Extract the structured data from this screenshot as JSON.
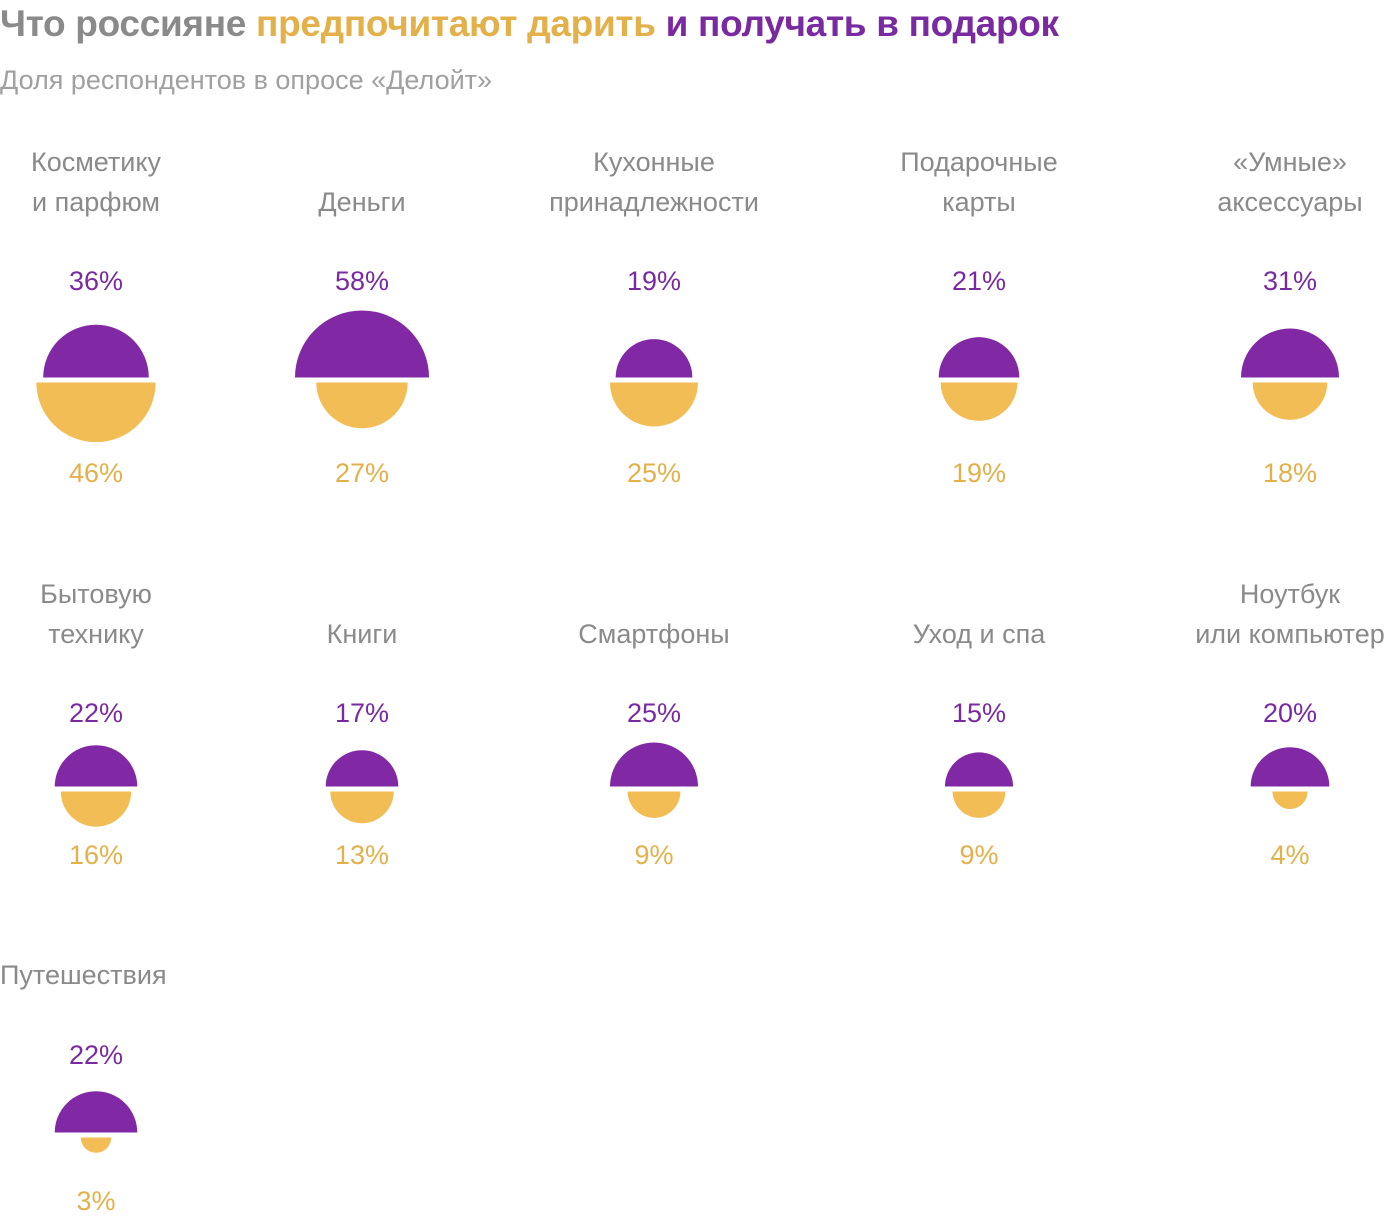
{
  "header": {
    "title_part1": "Что россияне ",
    "title_part2": "предпочитают дарить",
    "title_part3": " и получать в подарок",
    "subtitle": "Доля респондентов в опросе «Делойт»"
  },
  "colors": {
    "title_grey": "#8a8a8a",
    "give": "#e3b04a",
    "give_fill": "#f2bd55",
    "receive": "#7a2aa0",
    "receive_fill": "#8129a5",
    "category_text": "#8a8a8a"
  },
  "chart_data": {
    "type": "semicircle-pairs",
    "unit": "%",
    "series": [
      {
        "name": "получать в подарок",
        "color": "#8129a5",
        "position": "top"
      },
      {
        "name": "предпочитают дарить",
        "color": "#f2bd55",
        "position": "bottom"
      }
    ],
    "items": [
      {
        "label_lines": [
          "Косметику",
          "и парфюм"
        ],
        "receive": 36,
        "give": 46
      },
      {
        "label_lines": [
          "Деньги"
        ],
        "receive": 58,
        "give": 27
      },
      {
        "label_lines": [
          "Кухонные",
          "принадлежности"
        ],
        "receive": 19,
        "give": 25
      },
      {
        "label_lines": [
          "Подарочные",
          "карты"
        ],
        "receive": 21,
        "give": 19
      },
      {
        "label_lines": [
          "«Умные»",
          "аксессуары"
        ],
        "receive": 31,
        "give": 18
      },
      {
        "label_lines": [
          "Бытовую",
          "технику"
        ],
        "receive": 22,
        "give": 16
      },
      {
        "label_lines": [
          "Книги"
        ],
        "receive": 17,
        "give": 13
      },
      {
        "label_lines": [
          "Смартфоны"
        ],
        "receive": 25,
        "give": 9
      },
      {
        "label_lines": [
          "Уход и спа"
        ],
        "receive": 15,
        "give": 9
      },
      {
        "label_lines": [
          "Ноутбук",
          "или компьютер"
        ],
        "receive": 20,
        "give": 4
      },
      {
        "label_lines": [
          "Путешествия"
        ],
        "receive": 22,
        "give": 3
      }
    ]
  }
}
